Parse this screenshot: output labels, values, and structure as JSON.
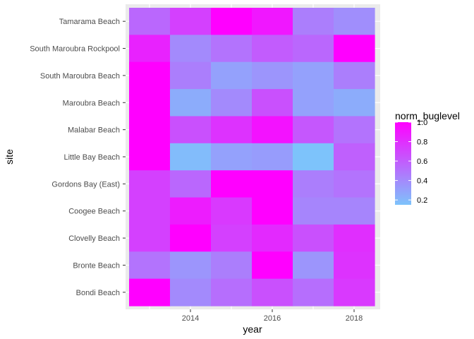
{
  "chart_data": {
    "type": "heatmap",
    "title": "",
    "xlabel": "year",
    "ylabel": "site",
    "x": [
      2013,
      2014,
      2015,
      2016,
      2017,
      2018
    ],
    "x_tick_labels": [
      "2014",
      "2016",
      "2018"
    ],
    "x_ticks": [
      2014,
      2016,
      2018
    ],
    "sites": [
      "Tamarama Beach",
      "South Maroubra Rockpool",
      "South Maroubra Beach",
      "Maroubra Beach",
      "Malabar Beach",
      "Little Bay Beach",
      "Gordons Bay (East)",
      "Coogee Beach",
      "Clovelly Beach",
      "Bronte Beach",
      "Bondi Beach"
    ],
    "values": [
      [
        0.55,
        0.72,
        1.0,
        0.9,
        0.45,
        0.38
      ],
      [
        0.85,
        0.4,
        0.5,
        0.6,
        0.55,
        1.0
      ],
      [
        1.0,
        0.45,
        0.3,
        0.35,
        0.3,
        0.45
      ],
      [
        1.0,
        0.25,
        0.4,
        0.65,
        0.3,
        0.25
      ],
      [
        1.0,
        0.65,
        0.78,
        0.92,
        0.62,
        0.5
      ],
      [
        1.0,
        0.18,
        0.3,
        0.32,
        0.15,
        0.58
      ],
      [
        0.72,
        0.55,
        1.0,
        1.0,
        0.45,
        0.5
      ],
      [
        0.72,
        0.88,
        0.75,
        1.0,
        0.42,
        0.42
      ],
      [
        0.72,
        1.0,
        0.72,
        0.82,
        0.65,
        0.8
      ],
      [
        0.5,
        0.35,
        0.45,
        1.0,
        0.35,
        0.78
      ],
      [
        1.0,
        0.4,
        0.52,
        0.65,
        0.52,
        0.75
      ]
    ],
    "legend": {
      "title": "norm_buglevel",
      "ticks": [
        1.0,
        0.8,
        0.6,
        0.4,
        0.2
      ],
      "tick_labels": [
        "1.0",
        "0.8",
        "0.6",
        "0.4",
        "0.2"
      ],
      "min": 0.15,
      "max": 1.0,
      "low_color": "#7dc3fb",
      "high_color": "#ff00ff",
      "placement": "right"
    },
    "panel_background": "#ebebeb",
    "grid": true
  }
}
